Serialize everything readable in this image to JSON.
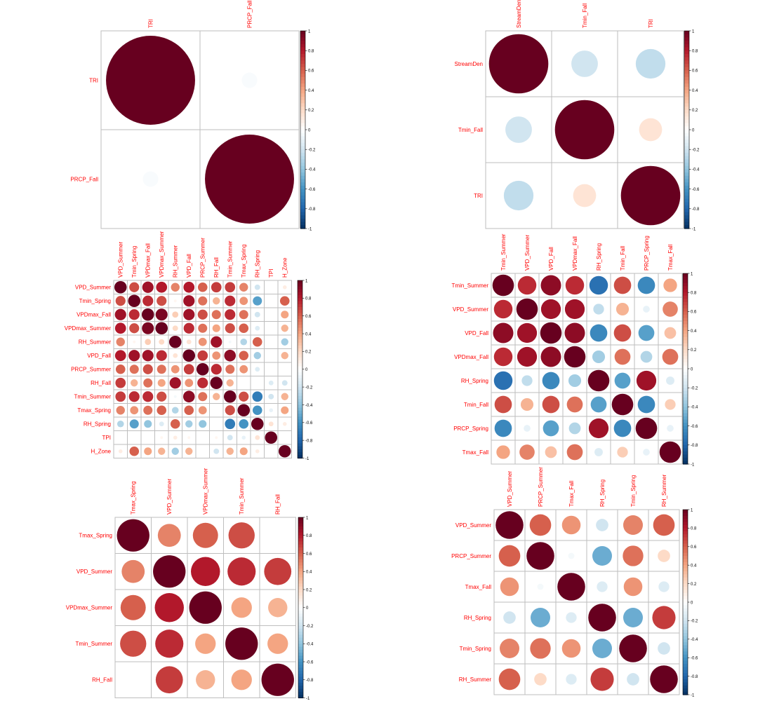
{
  "colors": {
    "label": "#ff0000",
    "grid": "#bebebe",
    "scale": [
      "#67001f",
      "#b2182b",
      "#d6604d",
      "#f4a582",
      "#fddbc7",
      "#ffffff",
      "#d1e5f0",
      "#92c5de",
      "#4393c3",
      "#2166ac",
      "#053061"
    ]
  },
  "colorbar_ticks": [
    "1",
    "0.8",
    "0.6",
    "0.4",
    "0.2",
    "0",
    "-0.2",
    "-0.4",
    "-0.6",
    "-0.8",
    "-1"
  ],
  "chart_data": [
    {
      "type": "heatmap",
      "variables": [
        "TRI",
        "PRCP_Fall"
      ],
      "values": [
        [
          1.0,
          -0.03
        ],
        [
          -0.03,
          1.0
        ]
      ]
    },
    {
      "type": "heatmap",
      "variables": [
        "StreamDen",
        "Tmin_Fall",
        "TRI"
      ],
      "values": [
        [
          1.0,
          -0.2,
          -0.25
        ],
        [
          -0.2,
          1.0,
          0.15
        ],
        [
          -0.25,
          0.15,
          1.0
        ]
      ]
    },
    {
      "type": "heatmap",
      "variables": [
        "VPD_Summer",
        "Tmin_Spring",
        "VPDmax_Fall",
        "VPDmax_Summer",
        "RH_Summer",
        "VPD_Fall",
        "PRCP_Summer",
        "RH_Fall",
        "Tmin_Summer",
        "Tmax_Spring",
        "RH_Spring",
        "TPI",
        "H_Zone"
      ],
      "values": [
        [
          1,
          0.65,
          0.85,
          0.8,
          0.5,
          0.8,
          0.6,
          0.7,
          0.7,
          0.5,
          -0.2,
          0,
          0.1
        ],
        [
          0.65,
          1,
          0.75,
          0.65,
          0.05,
          0.85,
          0.55,
          0.35,
          0.75,
          0.45,
          -0.55,
          0,
          0.6
        ],
        [
          0.85,
          0.75,
          1,
          0.95,
          0.25,
          0.85,
          0.65,
          0.55,
          0.75,
          0.55,
          -0.2,
          0,
          0.4
        ],
        [
          0.8,
          0.65,
          0.95,
          1,
          0.2,
          0.75,
          0.55,
          0.4,
          0.65,
          0.6,
          -0.15,
          0,
          0.35
        ],
        [
          0.5,
          0.05,
          0.25,
          0.2,
          1,
          0.15,
          0.45,
          0.85,
          -0.05,
          -0.3,
          0.6,
          0,
          -0.35
        ],
        [
          0.8,
          0.85,
          0.85,
          0.75,
          0.15,
          1,
          0.7,
          0.45,
          0.9,
          0.6,
          -0.35,
          0,
          0.35
        ],
        [
          0.6,
          0.55,
          0.65,
          0.55,
          0.45,
          0.7,
          1,
          0.75,
          0.55,
          0.45,
          -0.15,
          0,
          0
        ],
        [
          0.7,
          0.35,
          0.55,
          0.4,
          0.85,
          0.45,
          0.75,
          1,
          0.35,
          0,
          0,
          -0.15,
          -0.2
        ],
        [
          0.7,
          0.75,
          0.75,
          0.65,
          -0.05,
          0.9,
          0.55,
          0.35,
          1,
          0.65,
          -0.7,
          -0.2,
          0.35
        ],
        [
          0.5,
          0.45,
          0.55,
          0.6,
          -0.3,
          0.6,
          0.45,
          0,
          0.65,
          1,
          -0.6,
          -0.1,
          0.4
        ],
        [
          -0.3,
          -0.55,
          -0.4,
          -0.15,
          0.6,
          -0.35,
          -0.4,
          0,
          -0.7,
          -0.6,
          1,
          0.15,
          0.1
        ],
        [
          0,
          0,
          0,
          0.05,
          0.1,
          0.05,
          0,
          0.05,
          -0.2,
          -0.1,
          0.15,
          1,
          0
        ],
        [
          0.1,
          0.6,
          0.4,
          0.35,
          -0.35,
          0.35,
          0,
          -0.2,
          0.35,
          0.4,
          0.1,
          0,
          1
        ]
      ]
    },
    {
      "type": "heatmap",
      "variables": [
        "Tmin_Summer",
        "VPD_Summer",
        "VPD_Fall",
        "VPDmax_Fall",
        "RH_Spring",
        "Tmin_Fall",
        "PRCP_Spring",
        "Tmax_Fall"
      ],
      "values": [
        [
          1,
          0.75,
          0.9,
          0.75,
          -0.75,
          0.65,
          -0.65,
          0.4
        ],
        [
          0.75,
          1,
          0.85,
          0.85,
          -0.25,
          0.35,
          -0.1,
          0.5
        ],
        [
          0.9,
          0.85,
          1,
          0.9,
          -0.65,
          0.65,
          -0.55,
          0.3
        ],
        [
          0.75,
          0.85,
          0.9,
          1,
          -0.35,
          0.55,
          -0.3,
          0.55
        ],
        [
          -0.75,
          -0.25,
          -0.65,
          -0.35,
          1,
          -0.55,
          0.85,
          -0.15
        ],
        [
          0.65,
          0.35,
          0.65,
          0.55,
          -0.55,
          1,
          -0.65,
          0.25
        ],
        [
          -0.65,
          -0.1,
          -0.55,
          -0.3,
          0.85,
          -0.65,
          1,
          -0.1
        ],
        [
          0.4,
          0.5,
          0.3,
          0.55,
          -0.15,
          0.25,
          -0.1,
          1
        ]
      ]
    },
    {
      "type": "heatmap",
      "variables": [
        "Tmax_Spring",
        "VPD_Summer",
        "VPDmax_Summer",
        "Tmin_Summer",
        "RH_Fall"
      ],
      "values": [
        [
          1,
          0.5,
          0.6,
          0.65,
          0
        ],
        [
          0.5,
          1,
          0.8,
          0.75,
          0.7
        ],
        [
          0.6,
          0.8,
          1,
          0.4,
          0.35
        ],
        [
          0.65,
          0.75,
          0.4,
          1,
          0.4
        ],
        [
          0,
          0.7,
          0.35,
          0.4,
          1
        ]
      ]
    },
    {
      "type": "heatmap",
      "variables": [
        "VPD_Summer",
        "PRCP_Summer",
        "Tmax_Fall",
        "RH_Spring",
        "Tmin_Spring",
        "RH_Summer"
      ],
      "values": [
        [
          1,
          0.6,
          0.45,
          -0.2,
          0.5,
          0.6
        ],
        [
          0.6,
          1,
          -0.05,
          -0.5,
          0.55,
          0.2
        ],
        [
          0.45,
          -0.05,
          1,
          -0.15,
          0.45,
          -0.15
        ],
        [
          -0.2,
          -0.5,
          -0.15,
          1,
          -0.5,
          0.7
        ],
        [
          0.5,
          0.55,
          0.45,
          -0.5,
          1,
          -0.2
        ],
        [
          0.6,
          0.2,
          -0.15,
          0.7,
          -0.2,
          1
        ]
      ]
    }
  ]
}
